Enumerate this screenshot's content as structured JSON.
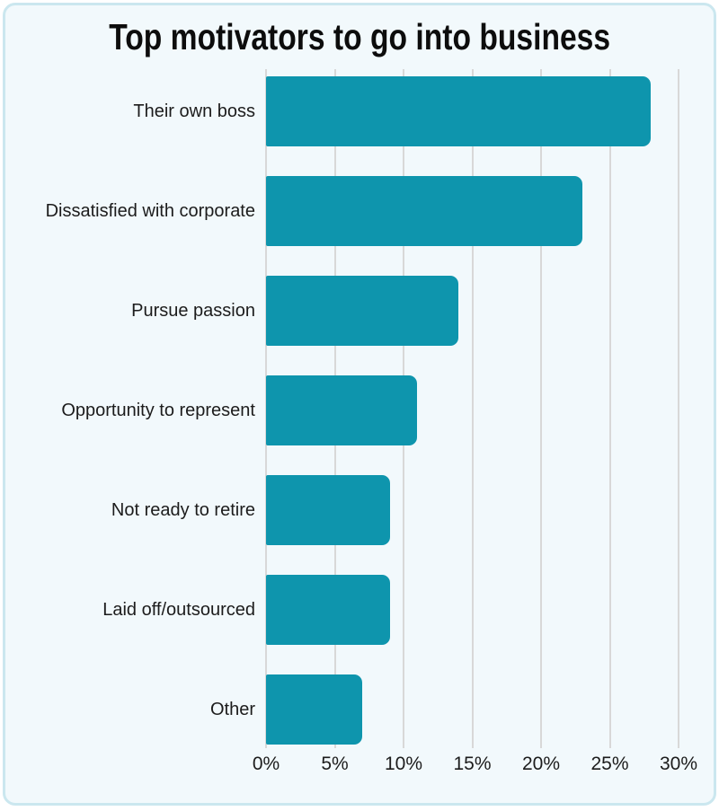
{
  "chart_data": {
    "type": "bar",
    "orientation": "horizontal",
    "title": "Top motivators to go into business",
    "categories": [
      "Their own boss",
      "Dissatisfied with corporate",
      "Pursue passion",
      "Opportunity to represent",
      "Not ready to retire",
      "Laid off/outsourced",
      "Other"
    ],
    "values": [
      28,
      23,
      14,
      11,
      9,
      9,
      7
    ],
    "unit": "%",
    "xlabel": "",
    "ylabel": "",
    "xlim": [
      0,
      30
    ],
    "xticks": [
      0,
      5,
      10,
      15,
      20,
      25,
      30
    ],
    "xtick_labels": [
      "0%",
      "5%",
      "10%",
      "15%",
      "20%",
      "25%",
      "30%"
    ],
    "grid": "vertical-only",
    "legend": "none",
    "colors": {
      "bar": "#0e95ad",
      "card_background": "#f2f9fc",
      "card_border": "#cbe7ef",
      "gridline": "#d8d8d8",
      "label_text": "#1c1c1c",
      "title_text": "#0d0d0d"
    }
  }
}
